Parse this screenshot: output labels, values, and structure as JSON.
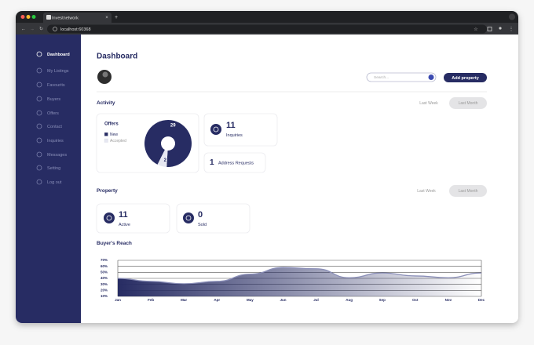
{
  "browser": {
    "tab_title": "Investnetwork",
    "url": "localhost:60368"
  },
  "sidebar": {
    "items": [
      "Dashboard",
      "My Listings",
      "Favourits",
      "Buyers",
      "Offers",
      "Contact",
      "Inquiries",
      "Messages",
      "Setting",
      "Log out"
    ]
  },
  "header": {
    "title": "Dashboard",
    "search_placeholder": "Search...",
    "button": "Add property"
  },
  "activity": {
    "title": "Activity",
    "filters": [
      "Last Week",
      "Last Month"
    ],
    "inquiries": {
      "value": 11,
      "label": "Inquiries"
    },
    "address_requests": {
      "value": 1,
      "label": "Address Requests"
    }
  },
  "property": {
    "title": "Property",
    "filters": [
      "Last Week",
      "Last Month"
    ],
    "active": {
      "value": 11,
      "label": "Active"
    },
    "sold": {
      "value": 0,
      "label": "Sold"
    }
  },
  "chart_data": [
    {
      "type": "pie",
      "title": "Offers",
      "categories": [
        "New",
        "Accepted"
      ],
      "values": [
        29,
        2
      ],
      "colors": [
        "#272c63",
        "#e6e7f1"
      ],
      "legend": "top-left"
    },
    {
      "type": "area",
      "title": "Buyer's Reach",
      "categories": [
        "Jan",
        "Feb",
        "Mar",
        "Apr",
        "May",
        "Jun",
        "Jul",
        "Aug",
        "Sep",
        "Oct",
        "Nov",
        "Dec"
      ],
      "values": [
        40,
        35,
        31,
        35,
        47,
        58,
        56,
        41,
        49,
        44,
        41,
        49
      ],
      "color": "#272c63",
      "line_color": "#8b8fb8",
      "ylim": [
        10,
        70
      ],
      "yticks": [
        {
          "value": 10,
          "label": "10%"
        },
        {
          "value": 20,
          "label": "20%"
        },
        {
          "value": 30,
          "label": "30%"
        },
        {
          "value": 40,
          "label": "40%"
        },
        {
          "value": 50,
          "label": "50%"
        },
        {
          "value": 60,
          "label": "60%"
        },
        {
          "value": 70,
          "label": "70%"
        }
      ],
      "grid": true
    }
  ]
}
